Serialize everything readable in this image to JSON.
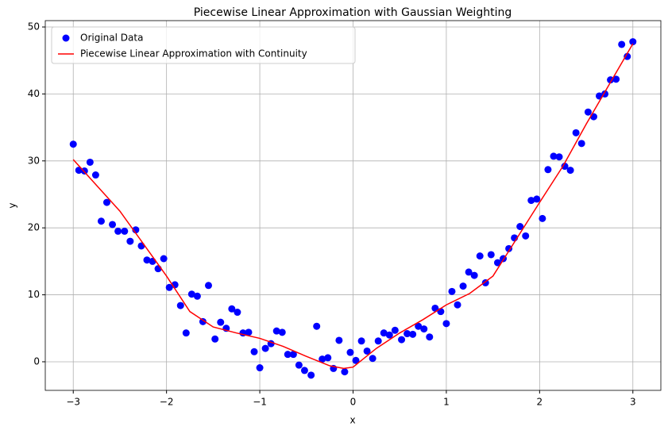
{
  "chart_data": {
    "type": "scatter",
    "title": "Piecewise Linear Approximation with Gaussian Weighting",
    "x_label": "x",
    "y_label": "y",
    "xlim": [
      -3.3,
      3.3
    ],
    "ylim": [
      -4.27,
      50.95
    ],
    "xticks": [
      {
        "value": -3,
        "label": "−3"
      },
      {
        "value": -2,
        "label": "−2"
      },
      {
        "value": -1,
        "label": "−1"
      },
      0,
      1,
      2,
      3
    ],
    "yticks": [
      0,
      10,
      20,
      30,
      40,
      50
    ],
    "grid": true,
    "legend": "upper left",
    "series": [
      {
        "name": "Original Data",
        "type": "scatter",
        "color": "#0000ff",
        "x": [
          -3.0,
          -2.94,
          -2.88,
          -2.82,
          -2.76,
          -2.7,
          -2.64,
          -2.58,
          -2.52,
          -2.45,
          -2.39,
          -2.33,
          -2.27,
          -2.21,
          -2.15,
          -2.09,
          -2.03,
          -1.97,
          -1.91,
          -1.85,
          -1.79,
          -1.73,
          -1.67,
          -1.61,
          -1.55,
          -1.48,
          -1.42,
          -1.36,
          -1.3,
          -1.24,
          -1.18,
          -1.12,
          -1.06,
          -1.0,
          -0.94,
          -0.88,
          -0.82,
          -0.76,
          -0.7,
          -0.64,
          -0.58,
          -0.52,
          -0.45,
          -0.39,
          -0.33,
          -0.27,
          -0.21,
          -0.15,
          -0.09,
          -0.03,
          0.03,
          0.09,
          0.15,
          0.21,
          0.27,
          0.33,
          0.39,
          0.45,
          0.52,
          0.58,
          0.64,
          0.7,
          0.76,
          0.82,
          0.88,
          0.94,
          1.0,
          1.06,
          1.12,
          1.18,
          1.24,
          1.3,
          1.36,
          1.42,
          1.48,
          1.55,
          1.61,
          1.67,
          1.73,
          1.79,
          1.85,
          1.91,
          1.97,
          2.03,
          2.09,
          2.15,
          2.21,
          2.27,
          2.33,
          2.39,
          2.45,
          2.52,
          2.58,
          2.64,
          2.7,
          2.76,
          2.82,
          2.88,
          2.94,
          3.0
        ],
        "values": [
          32.5,
          28.6,
          28.5,
          29.8,
          27.9,
          21.0,
          23.8,
          20.5,
          19.5,
          19.5,
          18.0,
          19.7,
          17.3,
          15.2,
          15.0,
          13.9,
          15.4,
          11.1,
          11.5,
          8.4,
          4.3,
          10.1,
          9.8,
          6.0,
          11.4,
          3.4,
          5.9,
          5.0,
          7.9,
          7.4,
          4.3,
          4.4,
          1.5,
          -0.9,
          2.0,
          2.7,
          4.6,
          4.4,
          1.1,
          1.1,
          -0.5,
          -1.3,
          -2.0,
          5.3,
          0.4,
          0.6,
          -1.0,
          3.2,
          -1.5,
          1.4,
          0.2,
          3.1,
          1.6,
          0.5,
          3.1,
          4.3,
          4.0,
          4.7,
          3.3,
          4.2,
          4.1,
          5.3,
          4.9,
          3.7,
          8.0,
          7.5,
          5.7,
          10.5,
          8.5,
          11.3,
          13.4,
          12.9,
          15.8,
          11.8,
          16.0,
          14.8,
          15.4,
          16.9,
          18.5,
          20.2,
          18.8,
          24.1,
          24.3,
          21.4,
          28.7,
          30.7,
          30.6,
          29.2,
          28.6,
          34.2,
          32.6,
          37.3,
          36.6,
          39.7,
          40.0,
          42.1,
          42.2,
          47.4,
          45.6,
          47.8
        ]
      },
      {
        "name": "Piecewise Linear Approximation with Continuity",
        "type": "line",
        "color": "#ff0000",
        "x": [
          -3.0,
          -2.5,
          -2.0,
          -1.75,
          -1.5,
          -1.25,
          -1.0,
          -0.75,
          -0.5,
          -0.25,
          -0.1,
          0.0,
          0.25,
          0.5,
          0.75,
          1.0,
          1.25,
          1.5,
          1.75,
          2.0,
          2.25,
          2.5,
          2.75,
          3.0
        ],
        "values": [
          30.2,
          22.5,
          12.8,
          7.5,
          5.2,
          4.3,
          3.5,
          2.3,
          0.8,
          -0.6,
          -1.0,
          -0.8,
          2.0,
          4.3,
          6.3,
          8.5,
          10.2,
          12.8,
          18.3,
          23.8,
          29.2,
          35.5,
          41.5,
          47.5
        ]
      }
    ]
  }
}
